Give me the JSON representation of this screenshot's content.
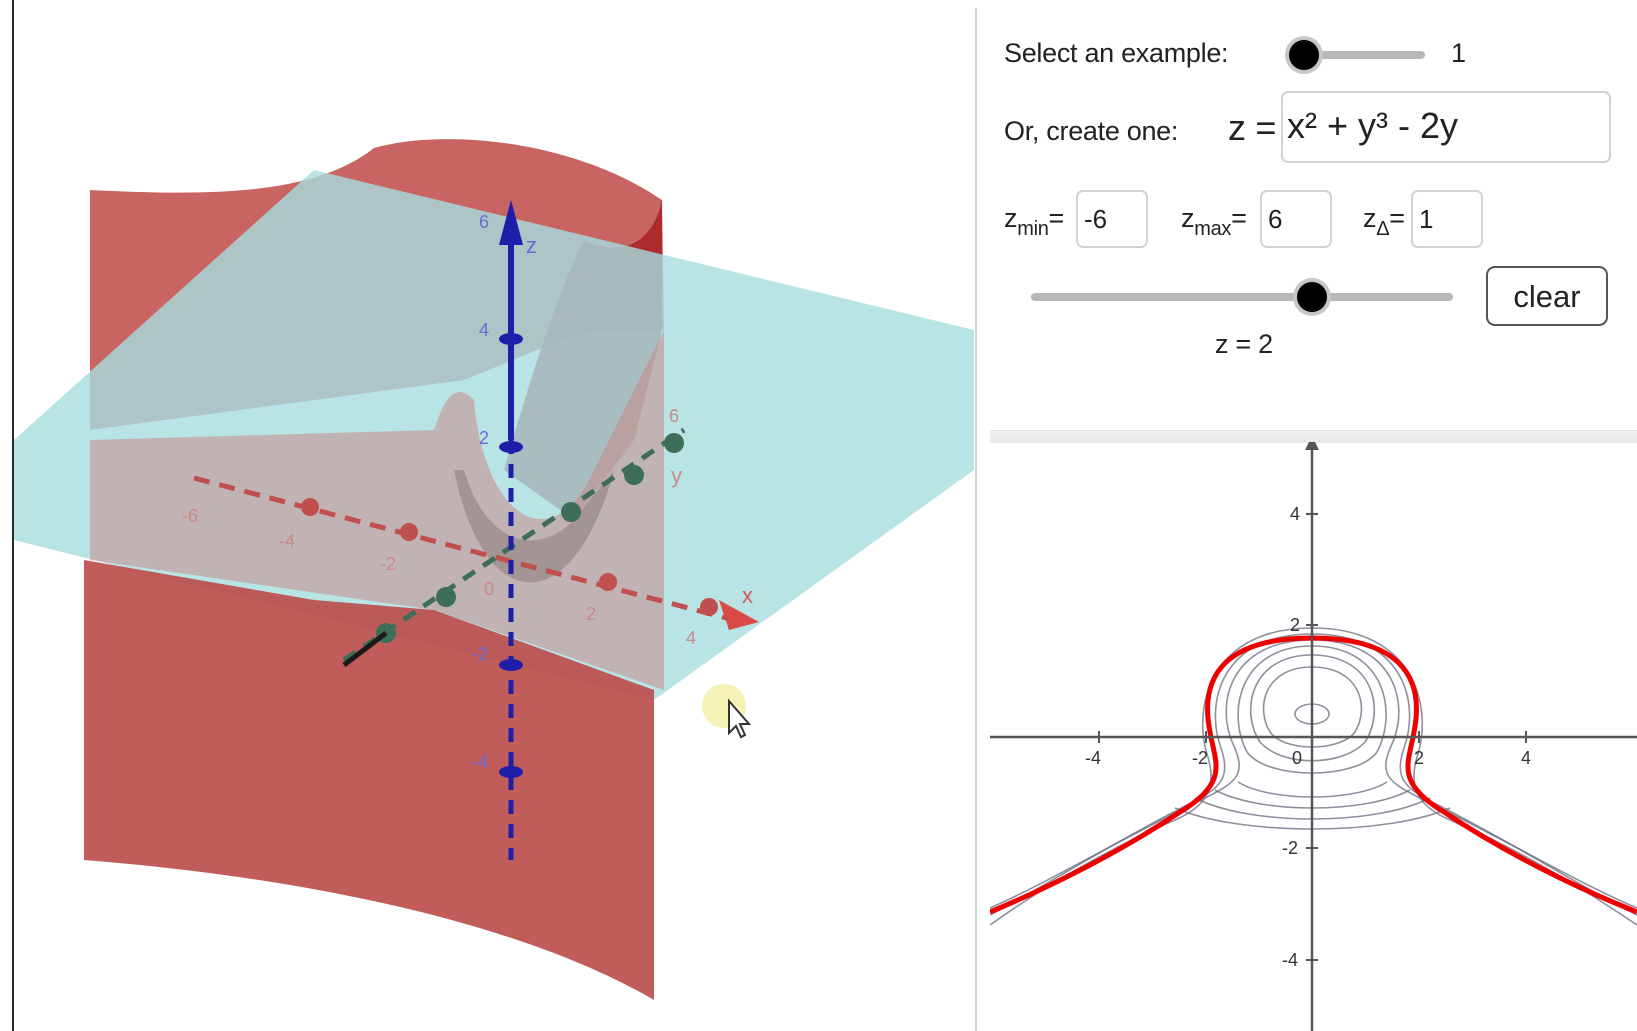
{
  "panel": {
    "example_label": "Select an example:",
    "example_value": "1",
    "example_slider_fraction": 0.1,
    "create_label": "Or, create one:",
    "equation_prefix": "z =",
    "equation_value": "x² + y³ - 2y",
    "zmin": {
      "base": "z",
      "sub": "min",
      "eq": "=",
      "value": "-6"
    },
    "zmax": {
      "base": "z",
      "sub": "max",
      "eq": "=",
      "value": "6"
    },
    "zstep": {
      "base": "z",
      "sub": "Δ",
      "eq": "=",
      "value": "1"
    },
    "z_slider_fraction": 0.667,
    "clear_label": "clear",
    "z_caption": "z = 2"
  },
  "graph3d": {
    "axis_labels": {
      "x": "x",
      "y": "y",
      "z": "z"
    },
    "x_ticks": [
      "-6",
      "-4",
      "-2",
      "0",
      "2",
      "4"
    ],
    "y_ticks": [
      "6"
    ],
    "z_ticks": [
      "6",
      "4",
      "2",
      "-2",
      "-4"
    ],
    "surface_color": "#c0504d",
    "plane_color": "#a8dde0",
    "axis_colors": {
      "x": "#c0504d",
      "y": "#3c6e5a",
      "z": "#1e1eaa"
    }
  },
  "graph2d": {
    "x_ticks": [
      "-4",
      "-2",
      "0",
      "2",
      "4"
    ],
    "y_ticks": [
      "4",
      "2",
      "-2",
      "-4"
    ],
    "highlight_color": "#ee0000",
    "contour_color": "#6a6a7e"
  }
}
